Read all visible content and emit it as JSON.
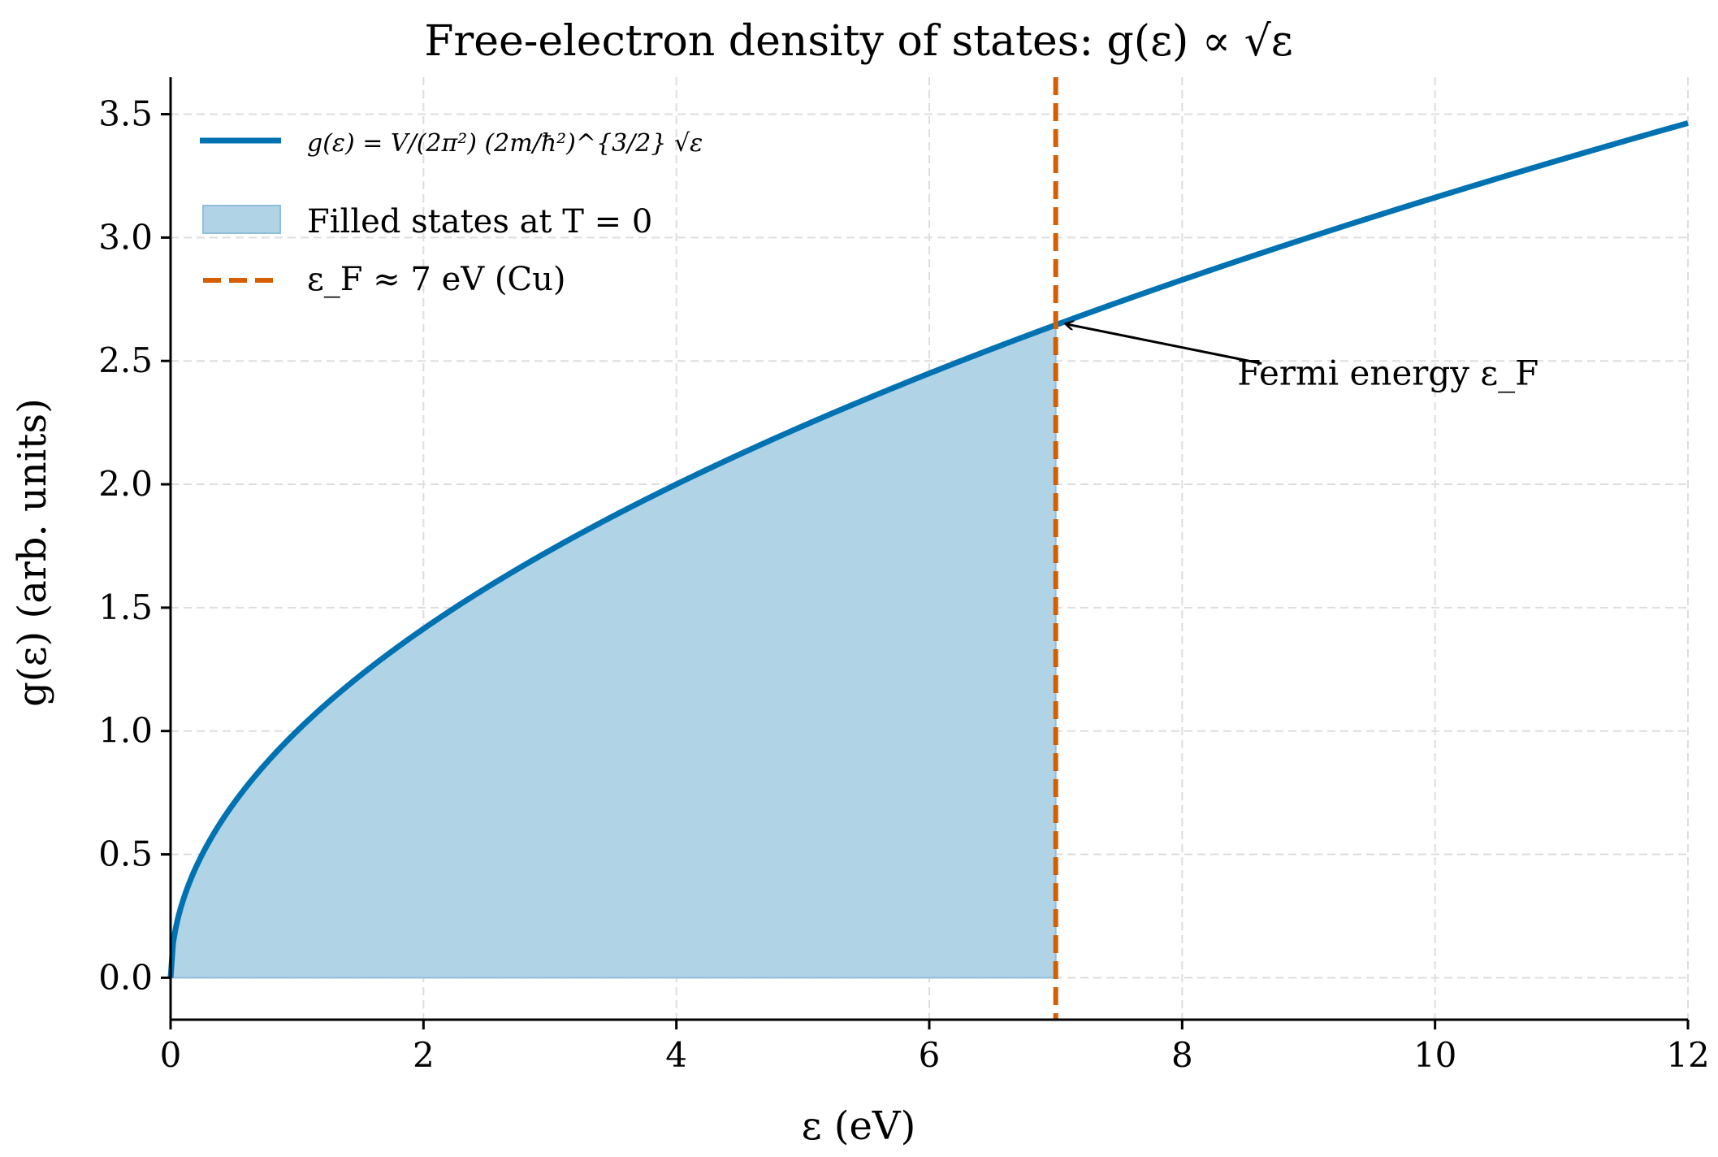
{
  "chart_data": {
    "type": "area",
    "title": "Free-electron density of states: g(ε) ∝ √ε",
    "xlabel": "ε (eV)",
    "ylabel": "g(ε) (arb. units)",
    "xlim": [
      0,
      12
    ],
    "ylim": [
      -0.17,
      3.65
    ],
    "xticks": [
      0,
      2,
      4,
      6,
      8,
      10,
      12
    ],
    "xtick_labels": [
      "0",
      "2",
      "4",
      "6",
      "8",
      "10",
      "12"
    ],
    "yticks": [
      0.0,
      0.5,
      1.0,
      1.5,
      2.0,
      2.5,
      3.0,
      3.5
    ],
    "ytick_labels": [
      "0.0",
      "0.5",
      "1.0",
      "1.5",
      "2.0",
      "2.5",
      "3.0",
      "3.5"
    ],
    "grid": true,
    "legend_position": "top-left",
    "series": [
      {
        "name": "g(ε) = V/(2π²) (2m/ħ²)^{3/2} √ε",
        "kind": "line",
        "function": "sqrt",
        "x_range": [
          0,
          12
        ],
        "color": "#0072b2",
        "sample_points": [
          [
            0,
            0
          ],
          [
            1,
            1.0
          ],
          [
            2,
            1.41
          ],
          [
            4,
            2.0
          ],
          [
            7,
            2.65
          ],
          [
            9,
            3.0
          ],
          [
            12,
            3.46
          ]
        ]
      },
      {
        "name": "Filled states at T = 0",
        "kind": "fill",
        "x_range": [
          0,
          7
        ],
        "color": "#b0d3e6"
      },
      {
        "name": "ε_F ≈ 7 eV (Cu)",
        "kind": "vline",
        "x": 7,
        "color": "#d55e00"
      }
    ],
    "annotations": [
      {
        "text": "Fermi energy ε_F",
        "point": [
          7,
          2.65
        ],
        "text_at": [
          8.5,
          2.45
        ]
      }
    ]
  }
}
